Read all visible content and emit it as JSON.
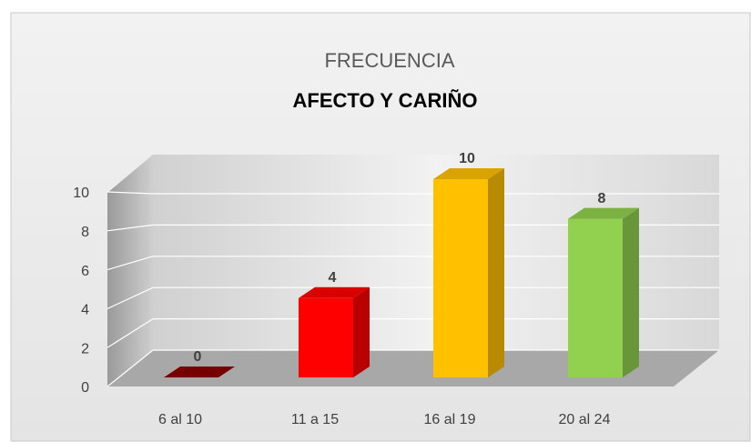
{
  "chart_data": {
    "type": "bar3d",
    "title": "FRECUENCIA",
    "subtitle": "AFECTO Y CARIÑO",
    "categories": [
      "6 al 10",
      "11 a  15",
      "16 al 19",
      "20  al 24"
    ],
    "values": [
      0,
      4,
      10,
      8
    ],
    "colors": [
      "#8b0000",
      "#ff0000",
      "#ffc000",
      "#92d050"
    ],
    "ylim": [
      0,
      10
    ],
    "yticks": [
      0,
      2,
      4,
      6,
      8,
      10
    ],
    "grid": true
  }
}
